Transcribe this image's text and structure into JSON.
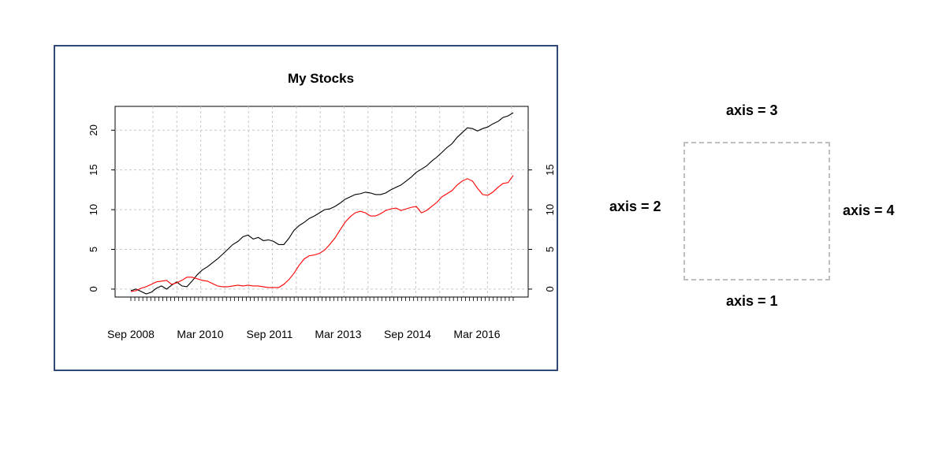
{
  "chart_data": {
    "type": "line",
    "title": "My Stocks",
    "xlabel": "",
    "ylabel": "",
    "x_tick_labels": [
      "Sep 2008",
      "Mar 2010",
      "Sep 2011",
      "Mar 2013",
      "Sep 2014",
      "Mar 2016"
    ],
    "left_y_ticks": [
      "0",
      "5",
      "10",
      "15",
      "20"
    ],
    "right_y_ticks": [
      "0",
      "5",
      "10",
      "15"
    ],
    "ylim": [
      -1,
      23
    ],
    "grid": true,
    "colors": {
      "series_1": "#000000",
      "series_2": "#ff0000",
      "grid": "#c8c8c8",
      "frame": "#2f4a78"
    },
    "series": [
      {
        "values": [
          -0.2,
          0,
          -0.3,
          -0.6,
          -0.4,
          0.1,
          0.4,
          0,
          0.5,
          0.9,
          0.4,
          0.3,
          1.0,
          1.8,
          2.4,
          2.8,
          3.3,
          3.8,
          4.4,
          5.0,
          5.6,
          6.0,
          6.6,
          6.8,
          6.3,
          6.5,
          6.1,
          6.2,
          6.0,
          5.6,
          5.6,
          6.4,
          7.4,
          8.0,
          8.4,
          8.9,
          9.2,
          9.6,
          10.0,
          10.1,
          10.4,
          10.8,
          11.3,
          11.6,
          11.9,
          12.0,
          12.2,
          12.1,
          11.9,
          11.9,
          12.1,
          12.5,
          12.8,
          13.1,
          13.6,
          14.1,
          14.7,
          15.1,
          15.5,
          16.1,
          16.6,
          17.2,
          17.8,
          18.3,
          19.1,
          19.7,
          20.3,
          20.2,
          19.9,
          20.2,
          20.4,
          20.8,
          21.1,
          21.6,
          21.8,
          22.2
        ]
      },
      {
        "values": [
          -0.3,
          -0.2,
          0.1,
          0.3,
          0.6,
          0.9,
          1.0,
          1.1,
          0.6,
          0.8,
          1.1,
          1.5,
          1.5,
          1.3,
          1.1,
          1.0,
          0.7,
          0.4,
          0.3,
          0.3,
          0.4,
          0.5,
          0.4,
          0.5,
          0.4,
          0.4,
          0.3,
          0.2,
          0.2,
          0.2,
          0.6,
          1.2,
          2.0,
          3.0,
          3.8,
          4.2,
          4.3,
          4.5,
          4.9,
          5.6,
          6.4,
          7.4,
          8.4,
          9.1,
          9.6,
          9.8,
          9.6,
          9.2,
          9.2,
          9.5,
          9.9,
          10.1,
          10.2,
          9.9,
          10.1,
          10.3,
          10.4,
          9.6,
          9.9,
          10.4,
          10.9,
          11.6,
          12.0,
          12.4,
          13.1,
          13.6,
          13.9,
          13.6,
          12.7,
          11.9,
          11.8,
          12.2,
          12.8,
          13.3,
          13.4,
          14.3
        ]
      }
    ]
  },
  "axis_diagram": {
    "bottom": "axis = 1",
    "left": "axis = 2",
    "top": "axis = 3",
    "right": "axis = 4"
  }
}
